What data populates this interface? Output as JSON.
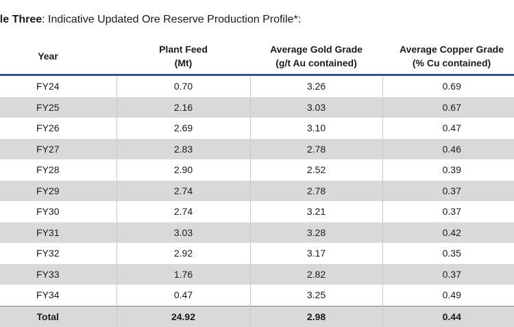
{
  "caption": {
    "bold_part": "ble Three",
    "rest": ": Indicative Updated Ore Reserve Production Profile*:"
  },
  "table": {
    "headers": [
      {
        "line1": "Year",
        "line2": ""
      },
      {
        "line1": "Plant Feed",
        "line2": "(Mt)"
      },
      {
        "line1": "Average Gold Grade",
        "line2": "(g/t Au contained)"
      },
      {
        "line1": "Average Copper Grade",
        "line2": "(% Cu contained)"
      }
    ],
    "rows": [
      [
        "FY24",
        "0.70",
        "3.26",
        "0.69"
      ],
      [
        "FY25",
        "2.16",
        "3.03",
        "0.67"
      ],
      [
        "FY26",
        "2.69",
        "3.10",
        "0.47"
      ],
      [
        "FY27",
        "2.83",
        "2.78",
        "0.46"
      ],
      [
        "FY28",
        "2.90",
        "2.52",
        "0.39"
      ],
      [
        "FY29",
        "2.74",
        "2.78",
        "0.37"
      ],
      [
        "FY30",
        "2.74",
        "3.21",
        "0.37"
      ],
      [
        "FY31",
        "3.03",
        "3.28",
        "0.42"
      ],
      [
        "FY32",
        "2.92",
        "3.17",
        "0.35"
      ],
      [
        "FY33",
        "1.76",
        "2.82",
        "0.37"
      ],
      [
        "FY34",
        "0.47",
        "3.25",
        "0.49"
      ]
    ],
    "total": [
      "Total",
      "24.92",
      "2.98",
      "0.44"
    ]
  },
  "colors": {
    "header_rule": "#2f5597",
    "row_shade": "#d9d9d9"
  }
}
